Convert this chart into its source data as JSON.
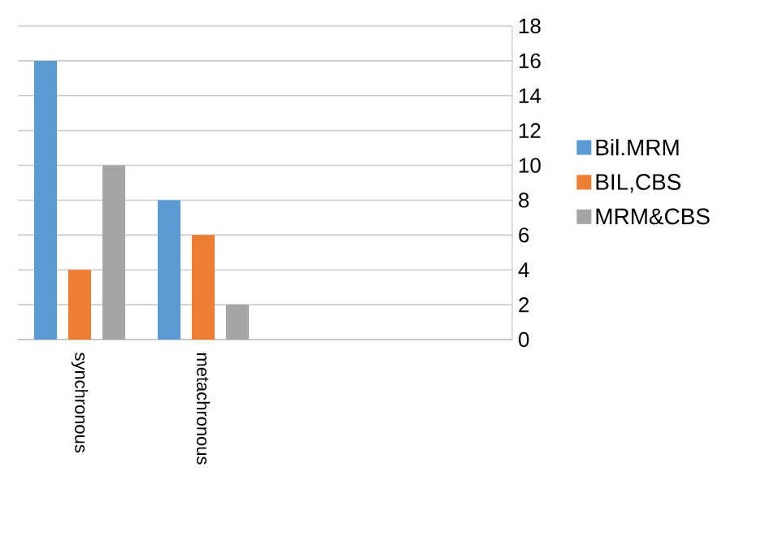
{
  "chart_data": {
    "type": "bar",
    "categories": [
      "synchronous",
      "metachronous",
      null,
      null
    ],
    "series": [
      {
        "name": "Bil.MRM",
        "color": "#5b9bd5",
        "values": [
          16,
          8,
          null,
          null
        ]
      },
      {
        "name": "BIL,CBS",
        "color": "#ed7d31",
        "values": [
          4,
          6,
          null,
          null
        ]
      },
      {
        "name": "MRM&CBS",
        "color": "#a5a5a5",
        "values": [
          10,
          2,
          null,
          null
        ]
      }
    ],
    "ylim": [
      0,
      18
    ],
    "yticks": [
      0,
      2,
      4,
      6,
      8,
      10,
      12,
      14,
      16,
      18
    ],
    "grid": "y",
    "legend": "right"
  }
}
